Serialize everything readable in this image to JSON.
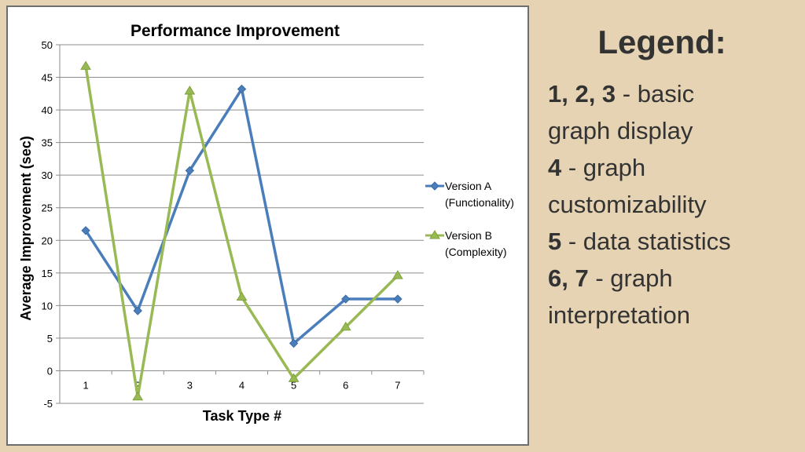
{
  "chart_data": {
    "type": "line",
    "title": "Performance Improvement",
    "xlabel": "Task Type #",
    "ylabel": "Average Improvement (sec)",
    "categories": [
      "1",
      "2",
      "3",
      "4",
      "5",
      "6",
      "7"
    ],
    "ylim": [
      -5,
      50
    ],
    "yticks": [
      "-5",
      "0",
      "5",
      "10",
      "15",
      "20",
      "25",
      "30",
      "35",
      "40",
      "45",
      "50"
    ],
    "grid": true,
    "legend_position": "right",
    "series": [
      {
        "name": "Version A (Functionality)",
        "legend_lines": [
          "Version A",
          "(Functionality)"
        ],
        "color": "#4a7ebb",
        "marker": "diamond",
        "values": [
          21.5,
          9.2,
          30.7,
          43.2,
          4.2,
          11.0,
          11.0
        ]
      },
      {
        "name": "Version B (Complexity)",
        "legend_lines": [
          "Version B",
          "(Complexity)"
        ],
        "color": "#98b954",
        "marker": "triangle",
        "values": [
          46.7,
          -4.0,
          42.9,
          11.3,
          -1.2,
          6.7,
          14.6
        ]
      }
    ]
  },
  "legend_text": {
    "heading": "Legend:",
    "items": [
      {
        "bold": "1, 2, 3",
        "text": " - basic"
      },
      {
        "bold": "",
        "text": "graph display"
      },
      {
        "bold": "4",
        "text": " - graph"
      },
      {
        "bold": "",
        "text": "customizability"
      },
      {
        "bold": "5",
        "text": " - data statistics"
      },
      {
        "bold": "6, 7",
        "text": " - graph"
      },
      {
        "bold": "",
        "text": "interpretation"
      }
    ]
  }
}
